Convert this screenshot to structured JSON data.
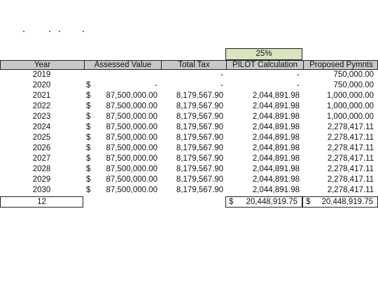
{
  "pilot_rate": "25%",
  "headers": {
    "year": "Year",
    "assessed_value": "Assessed Value",
    "total_tax": "Total Tax",
    "pilot_calculation": "PILOT Calculation",
    "proposed_pymnts": "Proposed Pymnts"
  },
  "rows": [
    {
      "year": "2019",
      "dollar": "",
      "assessed": "",
      "tax": "-",
      "pilot": "-",
      "proposed": "750,000.00"
    },
    {
      "year": "2020",
      "dollar": "$",
      "assessed": "-",
      "tax": "-",
      "pilot": "-",
      "proposed": "750,000.00"
    },
    {
      "year": "2021",
      "dollar": "$",
      "assessed": "87,500,000.00",
      "tax": "8,179,567.90",
      "pilot": "2,044,891.98",
      "proposed": "1,000,000.00"
    },
    {
      "year": "2022",
      "dollar": "$",
      "assessed": "87,500,000.00",
      "tax": "8,179,567.90",
      "pilot": "2,044,891.98",
      "proposed": "1,000,000.00"
    },
    {
      "year": "2023",
      "dollar": "$",
      "assessed": "87,500,000.00",
      "tax": "8,179,567.90",
      "pilot": "2,044,891.98",
      "proposed": "1,000,000.00"
    },
    {
      "year": "2024",
      "dollar": "$",
      "assessed": "87,500,000.00",
      "tax": "8,179,567.90",
      "pilot": "2,044,891.98",
      "proposed": "2,278,417.11"
    },
    {
      "year": "2025",
      "dollar": "$",
      "assessed": "87,500,000.00",
      "tax": "8,179,567.90",
      "pilot": "2,044,891.98",
      "proposed": "2,278,417.11"
    },
    {
      "year": "2026",
      "dollar": "$",
      "assessed": "87,500,000.00",
      "tax": "8,179,567.90",
      "pilot": "2,044,891.98",
      "proposed": "2,278,417.11"
    },
    {
      "year": "2027",
      "dollar": "$",
      "assessed": "87,500,000.00",
      "tax": "8,179,567.90",
      "pilot": "2,044,891.98",
      "proposed": "2,278,417.11"
    },
    {
      "year": "2028",
      "dollar": "$",
      "assessed": "87,500,000.00",
      "tax": "8,179,567.90",
      "pilot": "2,044,891.98",
      "proposed": "2,278,417.11"
    },
    {
      "year": "2029",
      "dollar": "$",
      "assessed": "87,500,000.00",
      "tax": "8,179,567.90",
      "pilot": "2,044,891.98",
      "proposed": "2,278,417.11"
    },
    {
      "year": "2030",
      "dollar": "$",
      "assessed": "87,500,000.00",
      "tax": "8,179,567.90",
      "pilot": "2,044,891.98",
      "proposed": "2,278,417.11"
    }
  ],
  "totals": {
    "year_count": "12",
    "pilot_dollar": "$",
    "pilot_total": "20,448,919.75",
    "proposed_dollar": "$",
    "proposed_total": "20,448,919.75"
  }
}
